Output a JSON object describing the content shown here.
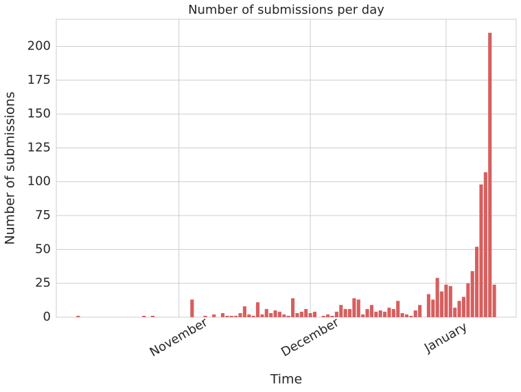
{
  "chart_data": {
    "type": "bar",
    "title": "Number of submissions per day",
    "xlabel": "Time",
    "ylabel": "Number of submissions",
    "x": [
      -23,
      -8,
      -6,
      3,
      6,
      8,
      10,
      11,
      12,
      13,
      14,
      15,
      16,
      17,
      18,
      19,
      20,
      21,
      22,
      23,
      24,
      25,
      26,
      27,
      28,
      29,
      30,
      31,
      33,
      34,
      35,
      36,
      37,
      38,
      39,
      40,
      41,
      42,
      43,
      44,
      45,
      46,
      47,
      48,
      49,
      50,
      51,
      52,
      53,
      54,
      55,
      57,
      58,
      59,
      60,
      61,
      62,
      63,
      64,
      65,
      66,
      67,
      68,
      69,
      70,
      71,
      72
    ],
    "values": [
      1,
      1,
      1,
      13,
      1,
      2,
      3,
      1,
      1,
      1,
      3,
      8,
      2,
      1,
      11,
      2,
      6,
      3,
      5,
      4,
      2,
      1,
      14,
      3,
      4,
      6,
      3,
      4,
      1,
      2,
      1,
      4,
      9,
      6,
      6,
      14,
      13,
      2,
      6,
      9,
      4,
      5,
      4,
      7,
      6,
      12,
      3,
      2,
      1,
      5,
      9,
      17,
      13,
      29,
      19,
      24,
      23,
      7,
      12,
      15,
      25,
      34,
      52,
      98,
      107,
      210,
      24
    ],
    "color": "#d65f5f",
    "xlim": [
      -28,
      77
    ],
    "xticks": [
      {
        "value": 0,
        "label": "November"
      },
      {
        "value": 30,
        "label": "December"
      },
      {
        "value": 61,
        "label": "January"
      }
    ],
    "ylim": [
      0,
      220
    ],
    "yticks": [
      0,
      25,
      50,
      75,
      100,
      125,
      150,
      175,
      200
    ],
    "grid": true
  }
}
